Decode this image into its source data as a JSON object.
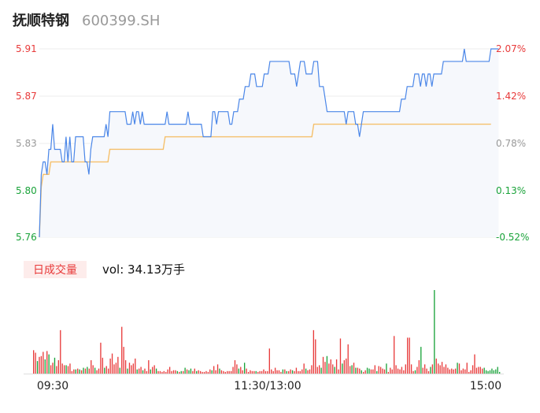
{
  "header": {
    "name": "抚顺特钢",
    "code": "600399.SH"
  },
  "volume_panel": {
    "tab_label": "日成交量",
    "vol_prefix": "vol: ",
    "vol_value": "34.13万手"
  },
  "colors": {
    "up": "#e83a3a",
    "down": "#1aa33a",
    "neutral": "#999999",
    "price_line": "#4a86e8",
    "avg_line": "#f5c06b",
    "area_fill": "#f6f8fc"
  },
  "chart_data": [
    {
      "type": "line",
      "subtype": "intraday-price",
      "x_range": [
        0,
        240
      ],
      "y_left_ticks": [
        "5.91",
        "5.87",
        "5.83",
        "5.80",
        "5.76"
      ],
      "y_right_ticks": [
        "2.07%",
        "1.42%",
        "0.78%",
        "0.13%",
        "-0.52%"
      ],
      "ylim": [
        5.76,
        5.91
      ],
      "x_tick_labels": [
        "09:30",
        "11:30/13:00",
        "15:00"
      ],
      "series": [
        {
          "kind": "price",
          "values": [
            5.76,
            5.81,
            5.82,
            5.82,
            5.81,
            5.83,
            5.83,
            5.85,
            5.83,
            5.83,
            5.83,
            5.83,
            5.82,
            5.82,
            5.84,
            5.82,
            5.84,
            5.82,
            5.82,
            5.84,
            5.84,
            5.84,
            5.84,
            5.84,
            5.82,
            5.82,
            5.81,
            5.83,
            5.84,
            5.84,
            5.84,
            5.84,
            5.84,
            5.84,
            5.84,
            5.85,
            5.84,
            5.86,
            5.86,
            5.86,
            5.86,
            5.86,
            5.86,
            5.86,
            5.86,
            5.86,
            5.85,
            5.85,
            5.85,
            5.86,
            5.85,
            5.86,
            5.86,
            5.85,
            5.86,
            5.85,
            5.85,
            5.85,
            5.85,
            5.85,
            5.85,
            5.85,
            5.85,
            5.85,
            5.85,
            5.85,
            5.85,
            5.86,
            5.85,
            5.85,
            5.85,
            5.85,
            5.85,
            5.85,
            5.85,
            5.85,
            5.85,
            5.85,
            5.86,
            5.85,
            5.85,
            5.85,
            5.85,
            5.85,
            5.85,
            5.85,
            5.84,
            5.84,
            5.84,
            5.84,
            5.84,
            5.86,
            5.86,
            5.85,
            5.86,
            5.86,
            5.86,
            5.86,
            5.86,
            5.86,
            5.85,
            5.85,
            5.86,
            5.86,
            5.86,
            5.87,
            5.87,
            5.87,
            5.88,
            5.88,
            5.88,
            5.89,
            5.89,
            5.89,
            5.88,
            5.88,
            5.88,
            5.88,
            5.89,
            5.89,
            5.89,
            5.9,
            5.9,
            5.9,
            5.9,
            5.9,
            5.9,
            5.9,
            5.9,
            5.9,
            5.9,
            5.9,
            5.89,
            5.89,
            5.89,
            5.88,
            5.89,
            5.9,
            5.9,
            5.9,
            5.89,
            5.89,
            5.89,
            5.89,
            5.9,
            5.9,
            5.9,
            5.88,
            5.88,
            5.88,
            5.87,
            5.86,
            5.86,
            5.86,
            5.86,
            5.86,
            5.86,
            5.86,
            5.86,
            5.86,
            5.86,
            5.85,
            5.86,
            5.86,
            5.86,
            5.86,
            5.85,
            5.85,
            5.84,
            5.85,
            5.86,
            5.86,
            5.86,
            5.86,
            5.86,
            5.86,
            5.86,
            5.86,
            5.86,
            5.86,
            5.86,
            5.86,
            5.86,
            5.86,
            5.86,
            5.86,
            5.86,
            5.86,
            5.86,
            5.86,
            5.87,
            5.87,
            5.87,
            5.88,
            5.88,
            5.88,
            5.88,
            5.89,
            5.89,
            5.89,
            5.88,
            5.89,
            5.89,
            5.88,
            5.89,
            5.89,
            5.88,
            5.89,
            5.89,
            5.89,
            5.89,
            5.89,
            5.9,
            5.9,
            5.9,
            5.9,
            5.9,
            5.9,
            5.9,
            5.9,
            5.9,
            5.9,
            5.9,
            5.91,
            5.9,
            5.9,
            5.9,
            5.9,
            5.9,
            5.9,
            5.9,
            5.9,
            5.9,
            5.9,
            5.9,
            5.9,
            5.9,
            5.91,
            5.91,
            5.91,
            5.91,
            5.91
          ]
        },
        {
          "kind": "average",
          "values": [
            5.76,
            5.8,
            5.81,
            5.81,
            5.81,
            5.81,
            5.82,
            5.82,
            5.82,
            5.82,
            5.82,
            5.82,
            5.82,
            5.82,
            5.82,
            5.82,
            5.82,
            5.82,
            5.82,
            5.82,
            5.82,
            5.82,
            5.82,
            5.82,
            5.82,
            5.82,
            5.82,
            5.82,
            5.82,
            5.82,
            5.82,
            5.82,
            5.82,
            5.82,
            5.82,
            5.82,
            5.82,
            5.83,
            5.83,
            5.83,
            5.83,
            5.83,
            5.83,
            5.83,
            5.83,
            5.83,
            5.83,
            5.83,
            5.83,
            5.83,
            5.83,
            5.83,
            5.83,
            5.83,
            5.83,
            5.83,
            5.83,
            5.83,
            5.83,
            5.83,
            5.83,
            5.83,
            5.83,
            5.83,
            5.83,
            5.83,
            5.84,
            5.84,
            5.84,
            5.84,
            5.84,
            5.84,
            5.84,
            5.84,
            5.84,
            5.84,
            5.84,
            5.84,
            5.84,
            5.84,
            5.84,
            5.84,
            5.84,
            5.84,
            5.84,
            5.84,
            5.84,
            5.84,
            5.84,
            5.84,
            5.84,
            5.84,
            5.84,
            5.84,
            5.84,
            5.84,
            5.84,
            5.84,
            5.84,
            5.84,
            5.84,
            5.84,
            5.84,
            5.84,
            5.84,
            5.84,
            5.84,
            5.84,
            5.84,
            5.84,
            5.84,
            5.84,
            5.84,
            5.84,
            5.84,
            5.84,
            5.84,
            5.84,
            5.84,
            5.84,
            5.84,
            5.84,
            5.84,
            5.84,
            5.84,
            5.84,
            5.84,
            5.84,
            5.84,
            5.84,
            5.84,
            5.84,
            5.84,
            5.84,
            5.84,
            5.84,
            5.84,
            5.84,
            5.84,
            5.84,
            5.84,
            5.84,
            5.84,
            5.84,
            5.85,
            5.85,
            5.85,
            5.85,
            5.85,
            5.85,
            5.85,
            5.85,
            5.85,
            5.85,
            5.85,
            5.85,
            5.85,
            5.85,
            5.85,
            5.85,
            5.85,
            5.85,
            5.85,
            5.85,
            5.85,
            5.85,
            5.85,
            5.85,
            5.85,
            5.85,
            5.85,
            5.85,
            5.85,
            5.85,
            5.85,
            5.85,
            5.85,
            5.85,
            5.85,
            5.85,
            5.85,
            5.85,
            5.85,
            5.85,
            5.85,
            5.85,
            5.85,
            5.85,
            5.85,
            5.85,
            5.85,
            5.85,
            5.85,
            5.85,
            5.85,
            5.85,
            5.85,
            5.85,
            5.85,
            5.85,
            5.85,
            5.85,
            5.85,
            5.85,
            5.85,
            5.85,
            5.85,
            5.85,
            5.85,
            5.85,
            5.85,
            5.85,
            5.85,
            5.85,
            5.85,
            5.85,
            5.85,
            5.85,
            5.85,
            5.85,
            5.85,
            5.85,
            5.85,
            5.85,
            5.85,
            5.85,
            5.85,
            5.85,
            5.85,
            5.85,
            5.85,
            5.85,
            5.85,
            5.85,
            5.85,
            5.85,
            5.85,
            5.85
          ]
        }
      ]
    },
    {
      "type": "bar",
      "subtype": "intraday-volume",
      "x_range": [
        0,
        240
      ],
      "values": [
        0.28,
        0.25,
        0.15,
        0.2,
        0.21,
        0.26,
        0.17,
        0.27,
        0.23,
        0.1,
        0.13,
        0.19,
        0.09,
        0.16,
        0.52,
        0.12,
        0.1,
        0.1,
        0.09,
        0.12,
        0.03,
        0.05,
        0.05,
        0.06,
        0.05,
        0.04,
        0.07,
        0.06,
        0.08,
        0.06,
        0.16,
        0.1,
        0.07,
        0.04,
        0.06,
        0.37,
        0.19,
        0.07,
        0.09,
        0.06,
        0.18,
        0.24,
        0.11,
        0.13,
        0.2,
        0.07,
        0.56,
        0.32,
        0.16,
        0.06,
        0.13,
        0.1,
        0.12,
        0.18,
        0.05,
        0.06,
        0.08,
        0.04,
        0.06,
        0.03,
        0.16,
        0.05,
        0.08,
        0.1,
        0.06,
        0.03,
        0.03,
        0.02,
        0.03,
        0.02,
        0.05,
        0.08,
        0.03,
        0.04,
        0.04,
        0.03,
        0.02,
        0.03,
        0.03,
        0.07,
        0.05,
        0.04,
        0.06,
        0.03,
        0.06,
        0.03,
        0.04,
        0.03,
        0.02,
        0.02,
        0.03,
        0.02,
        0.05,
        0.04,
        0.09,
        0.04,
        0.11,
        0.06,
        0.04,
        0.03,
        0.02,
        0.03,
        0.03,
        0.03,
        0.08,
        0.16,
        0.11,
        0.06,
        0.08,
        0.04,
        0.13,
        0.06,
        0.02,
        0.04,
        0.03,
        0.03,
        0.03,
        0.02,
        0.03,
        0.03,
        0.05,
        0.03,
        0.03,
        0.3,
        0.05,
        0.03,
        0.07,
        0.04,
        0.04,
        0.02,
        0.05,
        0.05,
        0.03,
        0.03,
        0.05,
        0.04,
        0.03,
        0.07,
        0.03,
        0.03,
        0.05,
        0.12,
        0.06,
        0.04,
        0.05,
        0.1,
        0.52,
        0.41,
        0.08,
        0.1,
        0.07,
        0.2,
        0.14,
        0.21,
        0.12,
        0.17,
        0.11,
        0.08,
        0.17,
        0.05,
        0.42,
        0.12,
        0.16,
        0.18,
        0.35,
        0.09,
        0.1,
        0.13,
        0.07,
        0.07,
        0.06,
        0.04,
        0.02,
        0.04,
        0.07,
        0.06,
        0.05,
        0.05,
        0.1,
        0.03,
        0.09,
        0.08,
        0.06,
        0.05,
        0.12,
        0.02,
        0.07,
        0.05,
        0.45,
        0.1,
        0.06,
        0.05,
        0.08,
        0.04,
        0.11,
        0.43,
        0.43,
        0.11,
        0.03,
        0.04,
        0.08,
        0.16,
        0.32,
        0.07,
        0.11,
        0.06,
        0.03,
        0.08,
        0.11,
        1.0,
        0.18,
        0.12,
        0.1,
        0.14,
        0.08,
        0.11,
        0.07,
        0.05,
        0.06,
        0.05,
        0.06,
        0.13,
        0.12,
        0.04,
        0.06,
        0.05,
        0.13,
        0.02,
        0.04,
        0.1,
        0.23,
        0.07,
        0.08,
        0.08,
        0.06,
        0.07,
        0.04,
        0.03,
        0.04,
        0.06,
        0.04,
        0.05,
        0.08,
        0.02
      ],
      "direction": [
        "up",
        "up",
        "down",
        "up",
        "up",
        "up",
        "down",
        "up",
        "down",
        "up",
        "up",
        "down",
        "up",
        "up",
        "up",
        "up",
        "up",
        "down",
        "up",
        "up",
        "up",
        "up",
        "down",
        "up",
        "down",
        "up",
        "down",
        "up",
        "down",
        "up",
        "up",
        "up",
        "down",
        "up",
        "up",
        "up",
        "up",
        "down",
        "up",
        "up",
        "up",
        "up",
        "up",
        "up",
        "up",
        "down",
        "up",
        "up",
        "up",
        "down",
        "up",
        "up",
        "up",
        "up",
        "down",
        "up",
        "up",
        "down",
        "up",
        "up",
        "up",
        "down",
        "up",
        "up",
        "down",
        "up",
        "up",
        "up",
        "up",
        "up",
        "up",
        "up",
        "up",
        "up",
        "up",
        "down",
        "up",
        "down",
        "up",
        "down",
        "up",
        "down",
        "down",
        "up",
        "up",
        "down",
        "up",
        "up",
        "up",
        "up",
        "up",
        "up",
        "up",
        "down",
        "up",
        "up",
        "up",
        "down",
        "up",
        "up",
        "up",
        "up",
        "up",
        "up",
        "up",
        "up",
        "up",
        "down",
        "up",
        "up",
        "down",
        "up",
        "up",
        "up",
        "up",
        "up",
        "down",
        "up",
        "up",
        "up",
        "up",
        "up",
        "up",
        "up",
        "up",
        "up",
        "up",
        "up",
        "up",
        "up",
        "down",
        "up",
        "down",
        "up",
        "up",
        "down",
        "up",
        "up",
        "up",
        "up",
        "up",
        "up",
        "down",
        "up",
        "up",
        "up",
        "up",
        "up",
        "up",
        "up",
        "down",
        "up",
        "up",
        "down",
        "up",
        "up",
        "up",
        "down",
        "up",
        "up",
        "up",
        "down",
        "up",
        "up",
        "up",
        "up",
        "down",
        "up",
        "down",
        "up",
        "up",
        "down",
        "up",
        "up",
        "down",
        "down",
        "up",
        "up",
        "up",
        "down",
        "up",
        "up",
        "up",
        "up",
        "down",
        "up",
        "up",
        "up",
        "up",
        "up",
        "up",
        "up",
        "up",
        "up",
        "up",
        "up",
        "up",
        "up",
        "up",
        "down",
        "up",
        "up",
        "down",
        "up",
        "up",
        "up",
        "up",
        "down",
        "up",
        "down",
        "up",
        "up",
        "up",
        "up",
        "up",
        "up",
        "up",
        "up",
        "up",
        "up",
        "up",
        "down",
        "up",
        "up",
        "up",
        "up",
        "up",
        "up",
        "up",
        "up",
        "up",
        "up",
        "up",
        "up",
        "up",
        "down"
      ]
    }
  ]
}
